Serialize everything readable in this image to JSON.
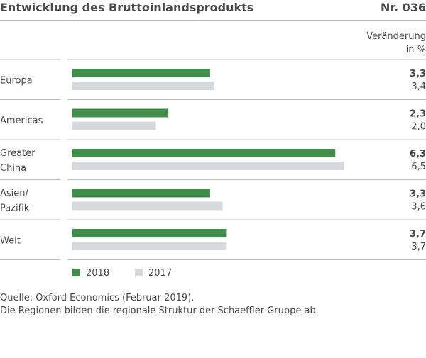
{
  "header": {
    "title": "Entwicklung des Bruttoinlandsprodukts",
    "number": "Nr. 036"
  },
  "column_header": {
    "line1": "Veränderung",
    "line2": "in %"
  },
  "colors": {
    "series_2018": "#3f8f4a",
    "series_2017": "#d7d8dc",
    "rule": "#bdbdbd",
    "text": "#4a4a4a"
  },
  "chart_data": {
    "type": "bar",
    "orientation": "horizontal",
    "categories": [
      [
        "Europa"
      ],
      [
        "Americas"
      ],
      [
        "Greater",
        "China"
      ],
      [
        "Asien/",
        "Pazifik"
      ],
      [
        "Welt"
      ]
    ],
    "series": [
      {
        "name": "2018",
        "values": [
          3.3,
          2.3,
          6.3,
          3.3,
          3.7
        ],
        "labels": [
          "3,3",
          "2,3",
          "6,3",
          "3,3",
          "3,7"
        ]
      },
      {
        "name": "2017",
        "values": [
          3.4,
          2.0,
          6.5,
          3.6,
          3.7
        ],
        "labels": [
          "3,4",
          "2,0",
          "6,5",
          "3,6",
          "3,7"
        ]
      }
    ],
    "xlim": [
      0,
      6.5
    ],
    "legend_position": "bottom-left",
    "grid": false
  },
  "footnote": {
    "line1": "Quelle: Oxford Economics (Februar 2019).",
    "line2": "Die Regionen bilden die regionale Struktur der Schaeffler Gruppe ab."
  }
}
